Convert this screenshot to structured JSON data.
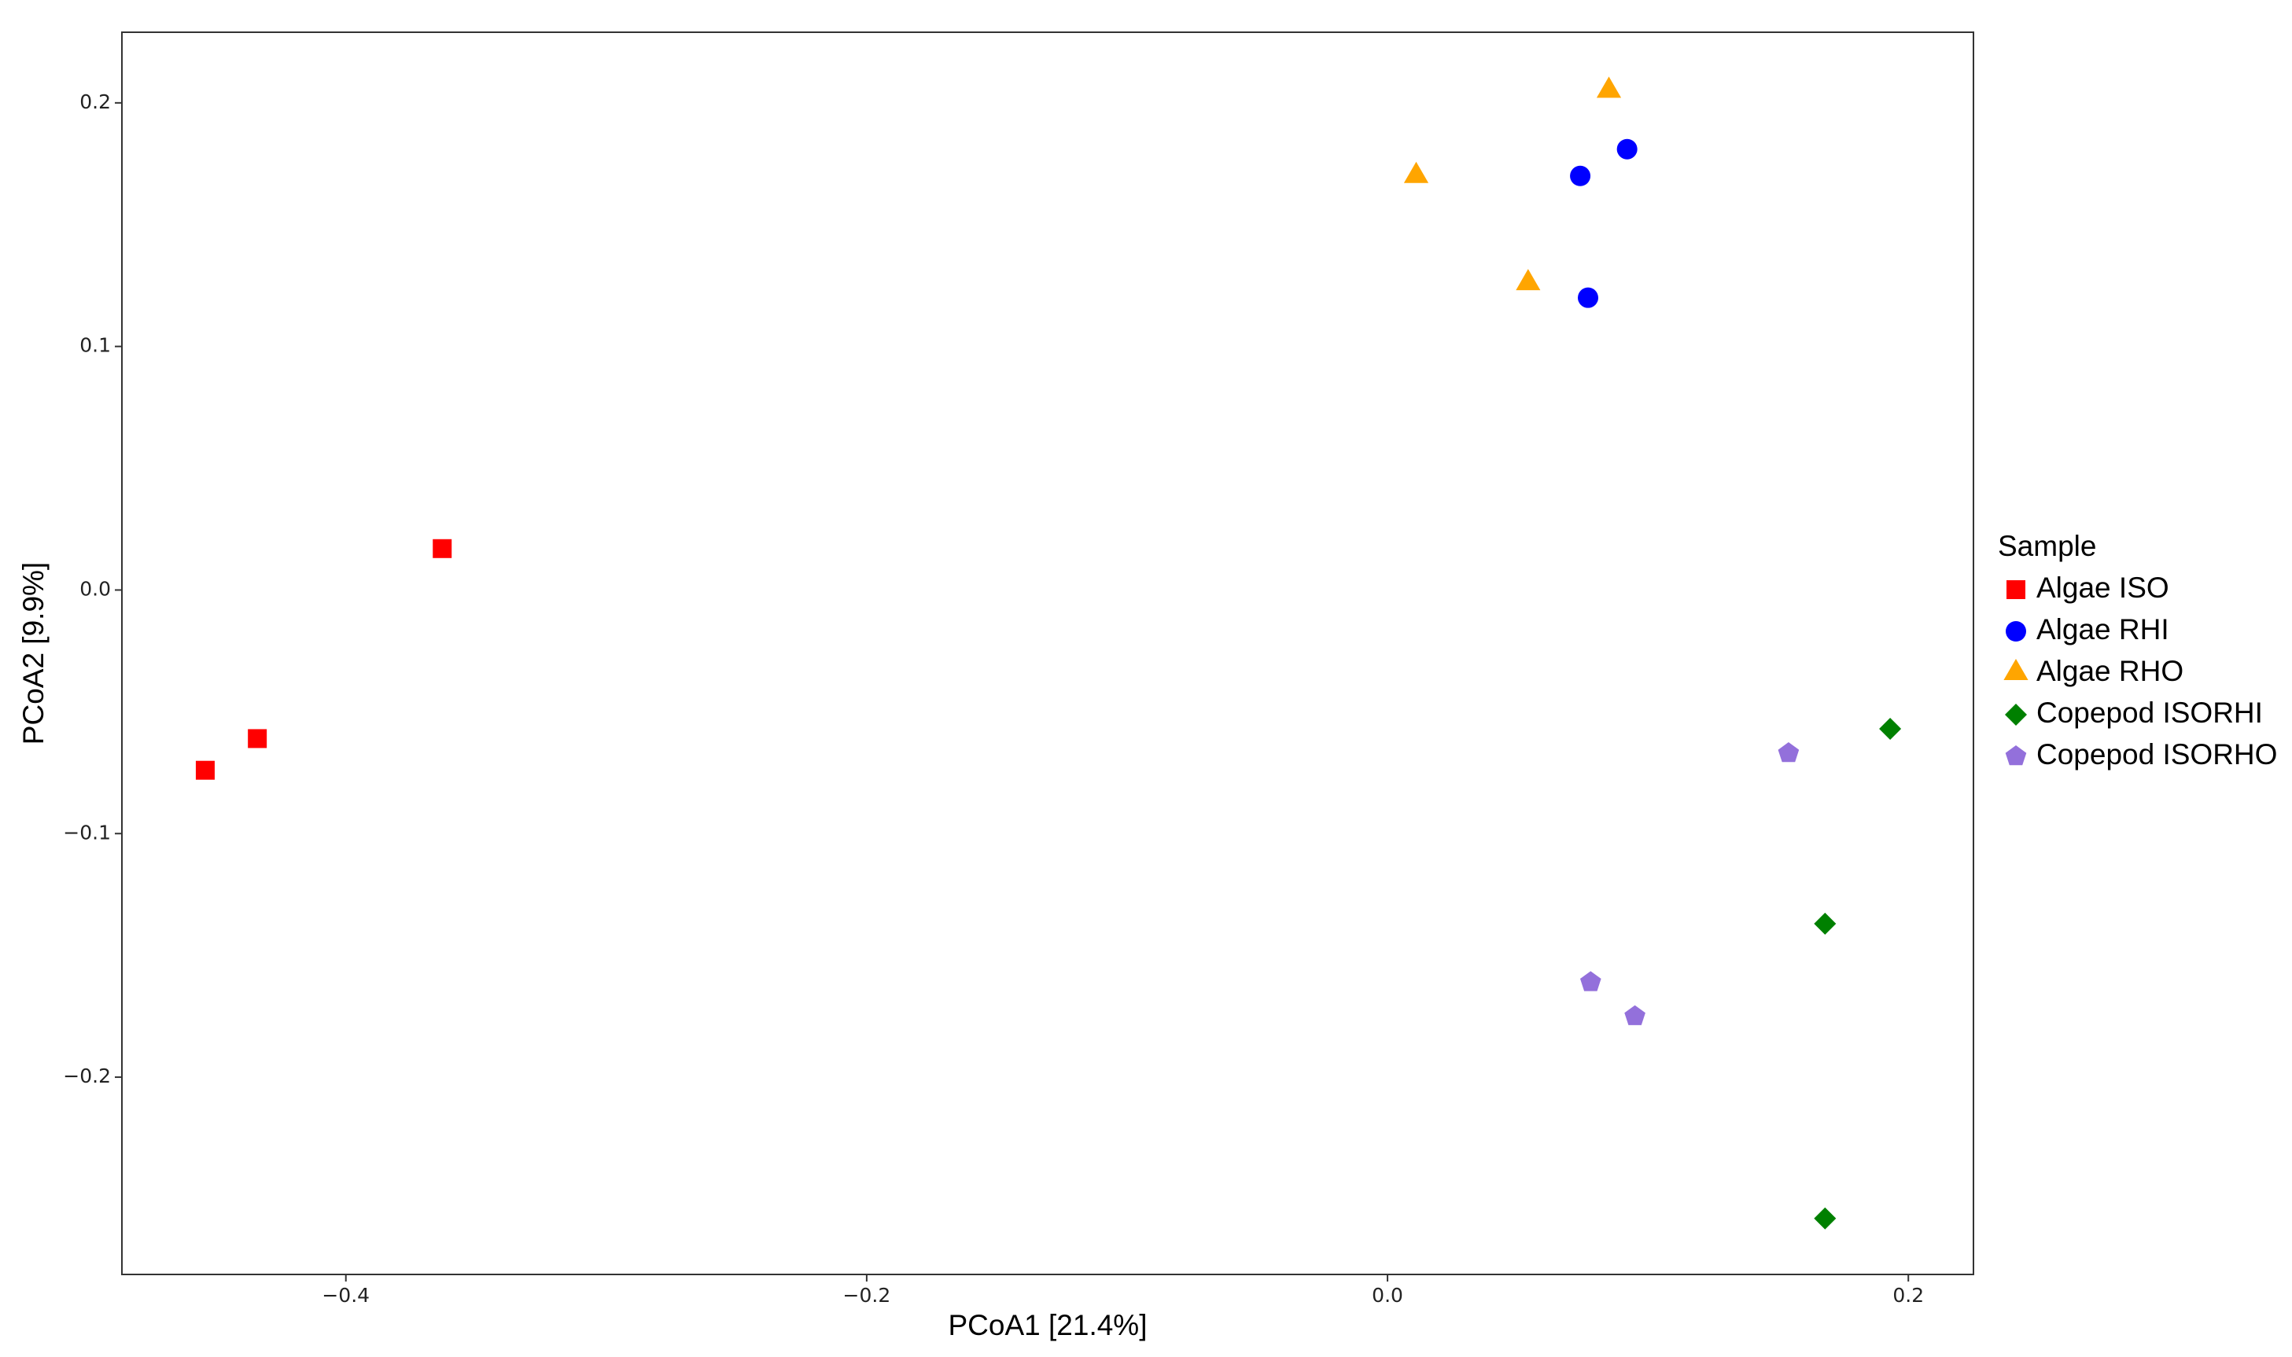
{
  "chart_data": {
    "type": "scatter",
    "x_label": "PCoA1 [21.4%]",
    "y_label": "PCoA2 [9.9%]",
    "legend_title": "Sample",
    "legend": "right",
    "xlim": [
      -0.486,
      0.225
    ],
    "ylim": [
      -0.281,
      0.229
    ],
    "xticks": [
      {
        "value": -0.4,
        "label": "−0.4"
      },
      {
        "value": -0.2,
        "label": "−0.2"
      },
      {
        "value": 0,
        "label": "0.0"
      },
      {
        "value": 0.2,
        "label": "0.2"
      }
    ],
    "yticks": [
      {
        "value": -0.2,
        "label": "−0.2"
      },
      {
        "value": -0.1,
        "label": "−0.1"
      },
      {
        "value": 0,
        "label": "0.0"
      },
      {
        "value": 0.1,
        "label": "0.1"
      },
      {
        "value": 0.2,
        "label": "0.2"
      }
    ],
    "series": [
      {
        "name": "Algae ISO",
        "color": "#ff0000",
        "marker": "square",
        "x": [
          -0.454,
          -0.434,
          -0.363
        ],
        "values": [
          -0.074,
          -0.061,
          0.017
        ]
      },
      {
        "name": "Algae RHI",
        "color": "#0000ff",
        "marker": "circle",
        "x": [
          0.074,
          0.092,
          0.077
        ],
        "values": [
          0.17,
          0.181,
          0.12
        ]
      },
      {
        "name": "Algae RHO",
        "color": "#ffa500",
        "marker": "triangle",
        "x": [
          0.085,
          0.011,
          0.054
        ],
        "values": [
          0.205,
          0.17,
          0.126
        ]
      },
      {
        "name": "Copepod ISORHI",
        "color": "#008000",
        "marker": "diamond",
        "x": [
          0.193,
          0.168,
          0.168
        ],
        "values": [
          -0.057,
          -0.137,
          -0.258
        ]
      },
      {
        "name": "Copepod ISORHO",
        "color": "#9370db",
        "marker": "pentagon",
        "x": [
          0.154,
          0.078,
          0.095
        ],
        "values": [
          -0.067,
          -0.161,
          -0.175
        ]
      }
    ]
  }
}
